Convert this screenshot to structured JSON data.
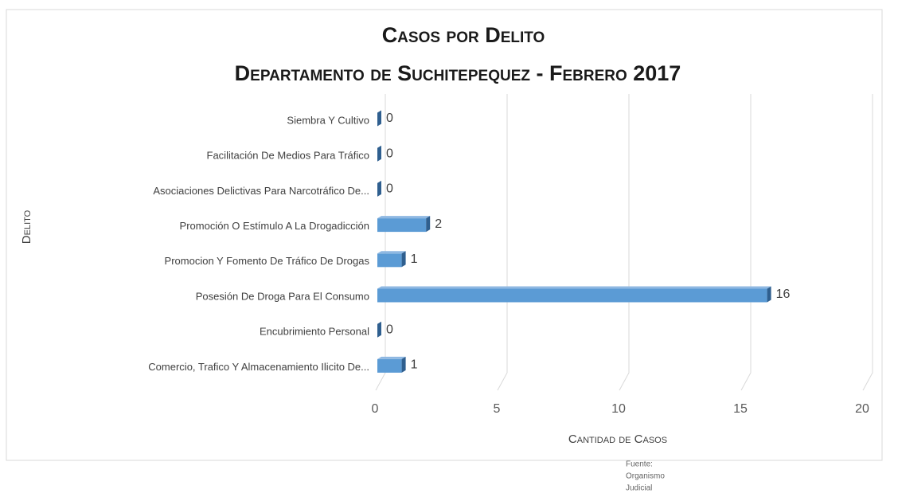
{
  "chart_data": {
    "type": "bar",
    "orientation": "horizontal",
    "title": [
      "Casos por Delito",
      "Departamento de Suchitepequez - Febrero 2017"
    ],
    "ylabel": "Delito",
    "xlabel": "Cantidad de Casos",
    "source": [
      "Fuente:",
      "Organismo",
      "Judicial"
    ],
    "categories": [
      "Siembra Y Cultivo",
      "Facilitación De Medios Para Tráfico",
      "Asociaciones Delictivas Para Narcotráfico De...",
      "Promoción O Estímulo A La Drogadicción",
      "Promocion Y Fomento De Tráfico De Drogas",
      "Posesión De Droga Para El Consumo",
      "Encubrimiento Personal",
      "Comercio, Trafico Y Almacenamiento Ilicito De..."
    ],
    "values": [
      0,
      0,
      0,
      2,
      1,
      16,
      0,
      1
    ],
    "color": "#5b9bd5",
    "xlim": [
      0,
      20
    ],
    "xticks": [
      0,
      5,
      10,
      15,
      20
    ],
    "grid": true
  }
}
